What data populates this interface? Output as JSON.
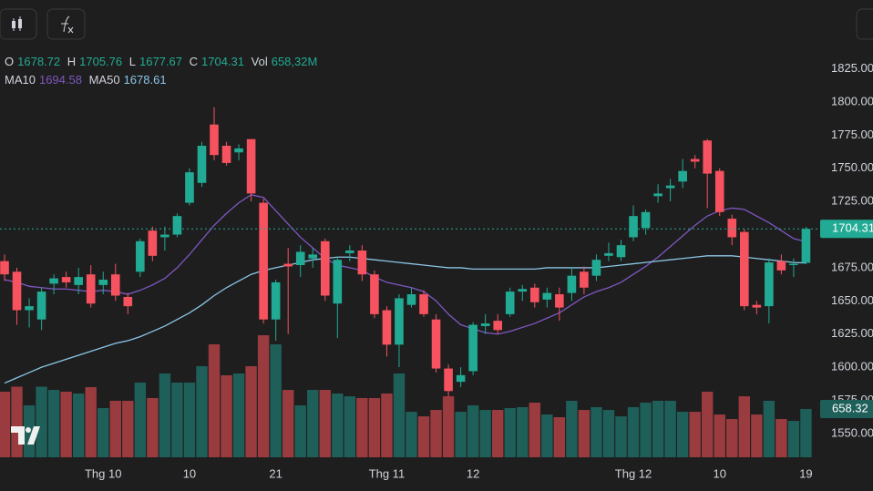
{
  "chart_data": {
    "type": "candlestick",
    "categories": [
      null,
      null,
      null,
      null,
      null,
      null,
      null,
      null,
      "Thg 10",
      null,
      null,
      null,
      null,
      null,
      null,
      "10",
      null,
      null,
      null,
      null,
      null,
      null,
      "21",
      null,
      null,
      null,
      null,
      null,
      null,
      null,
      null,
      "Thg 11",
      null,
      null,
      null,
      null,
      null,
      null,
      "12",
      null,
      null,
      null,
      null,
      null,
      null,
      null,
      null,
      null,
      null,
      null,
      null,
      "Thg 12",
      null,
      null,
      null,
      null,
      null,
      null,
      "10",
      null,
      null,
      null,
      null,
      null,
      null,
      "19"
    ],
    "open": [
      1680,
      1672,
      1643,
      1636,
      1663,
      1668,
      1662,
      1670,
      1662,
      1670,
      1653,
      1672,
      1703,
      1698,
      1700,
      1724,
      1739,
      1783,
      1767,
      1762,
      1772,
      1724,
      1636,
      1678,
      1677,
      1682,
      1695,
      1648,
      1686,
      1688,
      1670,
      1643,
      1617,
      1647,
      1655,
      1636,
      1599,
      1589,
      1597,
      1631,
      1635,
      1640,
      1657,
      1660,
      1651,
      1655,
      1656,
      1672,
      1669,
      1684,
      1683,
      1698,
      1705,
      1729,
      1735,
      1740,
      1757,
      1771,
      1748,
      1712,
      1702,
      1647,
      1646,
      1680,
      1677,
      1678.72
    ],
    "high": [
      1685,
      1675,
      1652,
      1660,
      1670,
      1672,
      1675,
      1677,
      1672,
      1678,
      1656,
      1697,
      1706,
      1706,
      1716,
      1750,
      1770,
      1796,
      1770,
      1768,
      1772,
      1727,
      1666,
      1690,
      1692,
      1690,
      1697,
      1683,
      1692,
      1692,
      1673,
      1646,
      1655,
      1660,
      1658,
      1640,
      1602,
      1600,
      1634,
      1640,
      1640,
      1660,
      1662,
      1663,
      1660,
      1660,
      1675,
      1676,
      1685,
      1694,
      1696,
      1722,
      1719,
      1738,
      1742,
      1757,
      1760,
      1772,
      1750,
      1715,
      1704,
      1650,
      1682,
      1685,
      1682,
      1705.76
    ],
    "low": [
      1665,
      1632,
      1630,
      1628,
      1655,
      1660,
      1655,
      1645,
      1655,
      1650,
      1640,
      1668,
      1680,
      1688,
      1698,
      1722,
      1736,
      1756,
      1752,
      1756,
      1725,
      1633,
      1620,
      1625,
      1668,
      1675,
      1650,
      1622,
      1680,
      1665,
      1637,
      1608,
      1600,
      1645,
      1638,
      1596,
      1578,
      1585,
      1594,
      1625,
      1625,
      1638,
      1650,
      1645,
      1645,
      1635,
      1650,
      1655,
      1665,
      1680,
      1680,
      1695,
      1700,
      1724,
      1725,
      1735,
      1750,
      1720,
      1714,
      1692,
      1643,
      1640,
      1633,
      1670,
      1668,
      1677.67
    ],
    "close": [
      1670,
      1643,
      1646,
      1657,
      1667,
      1664,
      1668,
      1648,
      1666,
      1654,
      1646,
      1695,
      1684,
      1700,
      1714,
      1747,
      1767,
      1760,
      1754,
      1765,
      1731,
      1636,
      1664,
      1676,
      1687,
      1685,
      1654,
      1681,
      1688,
      1670,
      1640,
      1617,
      1652,
      1655,
      1640,
      1599,
      1582,
      1594,
      1632,
      1633,
      1628,
      1657,
      1659,
      1649,
      1656,
      1645,
      1669,
      1660,
      1681,
      1686,
      1692,
      1714,
      1717,
      1731,
      1737,
      1748,
      1755,
      1746,
      1717,
      1698,
      1646,
      1645,
      1679,
      1673,
      1678,
      1704.31
    ],
    "volume": [
      894,
      962,
      708,
      962,
      918,
      894,
      869,
      956,
      670,
      770,
      770,
      1018,
      807,
      1142,
      1018,
      1018,
      1241,
      1539,
      1117,
      1142,
      1241,
      1663,
      1539,
      918,
      708,
      918,
      918,
      869,
      831,
      807,
      807,
      869,
      1142,
      620,
      558,
      645,
      831,
      620,
      708,
      645,
      645,
      670,
      683,
      745,
      583,
      546,
      770,
      645,
      683,
      645,
      558,
      683,
      745,
      770,
      770,
      620,
      620,
      894,
      583,
      521,
      831,
      583,
      770,
      521,
      496,
      658.32
    ],
    "volume_label": "658,32M",
    "vlim": [
      0,
      3500
    ],
    "legend": {
      "open": "O",
      "high": "H",
      "low": "L",
      "close": "C",
      "volume": "Vol"
    },
    "series": [
      {
        "name": "MA10",
        "color": "#7e57c2",
        "values": [
          1666,
          1664,
          1661,
          1660,
          1659,
          1659,
          1658,
          1657,
          1658,
          1657,
          1655,
          1658,
          1662,
          1667,
          1675,
          1685,
          1696,
          1707,
          1716,
          1724,
          1730,
          1728,
          1718,
          1708,
          1698,
          1690,
          1682,
          1677,
          1675,
          1673,
          1668,
          1664,
          1662,
          1660,
          1657,
          1650,
          1640,
          1632,
          1629,
          1626,
          1625,
          1627,
          1630,
          1633,
          1637,
          1641,
          1647,
          1653,
          1657,
          1660,
          1664,
          1670,
          1676,
          1683,
          1691,
          1699,
          1707,
          1714,
          1718,
          1720,
          1719,
          1714,
          1709,
          1703,
          1697,
          1694.58
        ]
      },
      {
        "name": "MA50",
        "color": "#8cc6e7",
        "values": [
          1588,
          1592,
          1596,
          1600,
          1603,
          1606,
          1609,
          1612,
          1615,
          1618,
          1620,
          1623,
          1627,
          1631,
          1636,
          1641,
          1647,
          1654,
          1660,
          1665,
          1670,
          1673,
          1675,
          1677,
          1679,
          1681,
          1682,
          1683,
          1683,
          1682,
          1681,
          1680,
          1679,
          1678,
          1677,
          1676,
          1675,
          1675,
          1674,
          1674,
          1674,
          1674,
          1674,
          1674,
          1675,
          1675,
          1675,
          1675,
          1675,
          1676,
          1677,
          1678,
          1679,
          1680,
          1681,
          1682,
          1683,
          1684,
          1684,
          1684,
          1683,
          1682,
          1681,
          1680,
          1679,
          1678.61
        ]
      }
    ],
    "up_color": "#22ab94",
    "down_color": "#f7525f",
    "up_volume_color": "#1f5f59",
    "down_volume_color": "#9a3b3f",
    "ylim": [
      1530,
      1846
    ],
    "yticks": [
      {
        "value": 1550,
        "label": "1550.00"
      },
      {
        "value": 1575,
        "label": "1575.00"
      },
      {
        "value": 1600,
        "label": "1600.00"
      },
      {
        "value": 1625,
        "label": "1625.00"
      },
      {
        "value": 1650,
        "label": "1650.00"
      },
      {
        "value": 1675,
        "label": "1675.00"
      },
      {
        "value": 1700,
        "label": "1700.00"
      },
      {
        "value": 1725,
        "label": "1725.00"
      },
      {
        "value": 1750,
        "label": "1750.00"
      },
      {
        "value": 1775,
        "label": "1775.00"
      },
      {
        "value": 1800,
        "label": "1800.00"
      },
      {
        "value": 1825,
        "label": "1825.00"
      }
    ]
  }
}
